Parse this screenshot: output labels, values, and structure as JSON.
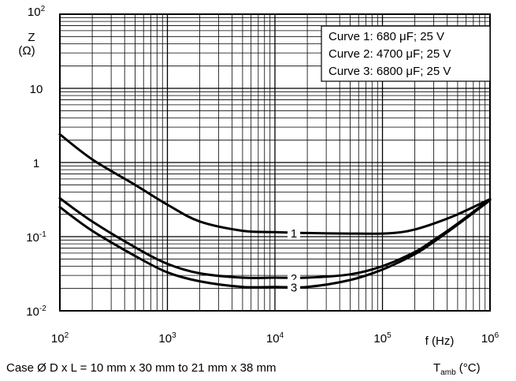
{
  "chart_data": {
    "type": "line",
    "x_scale": "log",
    "y_scale": "log",
    "xlim": [
      100,
      1000000
    ],
    "ylim": [
      0.01,
      100
    ],
    "grid": true,
    "legend_position": "top-right",
    "x_ticks": [
      {
        "base": "10",
        "exp": "2"
      },
      {
        "base": "10",
        "exp": "3"
      },
      {
        "base": "10",
        "exp": "4"
      },
      {
        "base": "10",
        "exp": "5"
      },
      {
        "base": "10",
        "exp": "6"
      }
    ],
    "y_ticks": [
      {
        "value": 100,
        "base": "10",
        "exp": "2"
      },
      {
        "value": 10,
        "base": "10",
        "exp": ""
      },
      {
        "value": 1,
        "base": "1",
        "exp": ""
      },
      {
        "value": 0.1,
        "base": "10",
        "exp": "-1"
      },
      {
        "value": 0.01,
        "base": "10",
        "exp": "-2"
      }
    ],
    "ylabel_line1": "Z",
    "ylabel_line2": "(Ω)",
    "xlabel": "f (Hz)",
    "legend": [
      "Curve 1: 680 μF; 25 V",
      "Curve 2: 4700 μF; 25 V",
      "Curve 3: 6800 μF; 25 V"
    ],
    "series": [
      {
        "label": "1",
        "x": [
          100,
          200,
          500,
          1000,
          2000,
          5000,
          10000,
          20000,
          50000,
          100000,
          150000,
          200000,
          300000,
          500000,
          1000000
        ],
        "y": [
          2.4,
          1.1,
          0.5,
          0.27,
          0.16,
          0.12,
          0.115,
          0.112,
          0.11,
          0.11,
          0.115,
          0.125,
          0.15,
          0.2,
          0.32
        ],
        "label_at": 15000
      },
      {
        "label": "2",
        "x": [
          100,
          200,
          500,
          1000,
          2000,
          5000,
          10000,
          20000,
          50000,
          100000,
          200000,
          300000,
          500000,
          1000000
        ],
        "y": [
          0.33,
          0.16,
          0.072,
          0.043,
          0.032,
          0.028,
          0.028,
          0.028,
          0.031,
          0.04,
          0.062,
          0.09,
          0.15,
          0.32
        ],
        "label_at": 15000
      },
      {
        "label": "3",
        "x": [
          100,
          200,
          500,
          1000,
          2000,
          5000,
          10000,
          20000,
          50000,
          100000,
          200000,
          300000,
          500000,
          1000000
        ],
        "y": [
          0.25,
          0.12,
          0.055,
          0.033,
          0.025,
          0.021,
          0.021,
          0.021,
          0.026,
          0.036,
          0.058,
          0.085,
          0.145,
          0.31
        ],
        "label_at": 15000
      }
    ]
  },
  "caption": {
    "case": "Case Ø D x L = 10 mm x 30 mm to 21 mm x 38 mm",
    "tamb_main": "T",
    "tamb_sub": "amb",
    "tamb_unit": " (°C)"
  }
}
